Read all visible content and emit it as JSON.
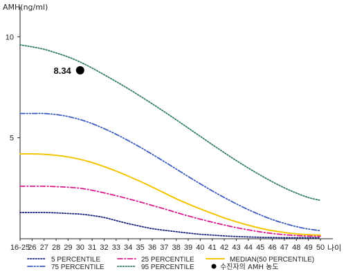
{
  "chart_data": {
    "type": "line",
    "ylabel": "AMH(ng/ml)",
    "xlabel": "나이",
    "categories": [
      "16-25",
      "26",
      "27",
      "28",
      "29",
      "30",
      "31",
      "32",
      "33",
      "34",
      "35",
      "36",
      "37",
      "38",
      "39",
      "40",
      "41",
      "42",
      "43",
      "44",
      "45",
      "46",
      "47",
      "48",
      "49",
      "50"
    ],
    "y_ticks": [
      5,
      10
    ],
    "ylim": [
      0,
      11
    ],
    "grid": false,
    "legend": "bottom",
    "series": [
      {
        "name": "5 PERCENTILE",
        "color": "#1a237e",
        "style": "dotted",
        "values": [
          1.3,
          1.3,
          1.3,
          1.28,
          1.25,
          1.22,
          1.15,
          1.05,
          0.9,
          0.75,
          0.62,
          0.5,
          0.42,
          0.35,
          0.28,
          0.22,
          0.18,
          0.14,
          0.11,
          0.09,
          0.07,
          0.06,
          0.05,
          0.05,
          0.05,
          0.05
        ]
      },
      {
        "name": "25 PERCENTILE",
        "color": "#d81b8c",
        "style": "dashdot",
        "values": [
          2.6,
          2.6,
          2.6,
          2.58,
          2.55,
          2.5,
          2.4,
          2.27,
          2.13,
          1.98,
          1.82,
          1.65,
          1.48,
          1.3,
          1.13,
          0.97,
          0.82,
          0.68,
          0.55,
          0.44,
          0.34,
          0.26,
          0.2,
          0.16,
          0.13,
          0.12
        ]
      },
      {
        "name": "MEDIAN(50 PERCENTILE)",
        "color": "#f2c500",
        "style": "solid",
        "values": [
          4.2,
          4.2,
          4.18,
          4.13,
          4.05,
          3.93,
          3.77,
          3.57,
          3.35,
          3.1,
          2.84,
          2.56,
          2.27,
          1.98,
          1.72,
          1.48,
          1.25,
          1.03,
          0.84,
          0.67,
          0.52,
          0.4,
          0.31,
          0.24,
          0.2,
          0.18
        ]
      },
      {
        "name": "75 PERCENTILE",
        "color": "#3a5bbd",
        "style": "dashdotdot",
        "values": [
          6.2,
          6.2,
          6.2,
          6.15,
          6.05,
          5.9,
          5.7,
          5.45,
          5.17,
          4.86,
          4.53,
          4.18,
          3.82,
          3.45,
          3.08,
          2.72,
          2.37,
          2.04,
          1.73,
          1.44,
          1.18,
          0.95,
          0.76,
          0.6,
          0.48,
          0.4
        ]
      },
      {
        "name": "95 PERCENTILE",
        "color": "#2e7d5b",
        "style": "dotted",
        "values": [
          9.6,
          9.5,
          9.38,
          9.2,
          9.0,
          8.75,
          8.45,
          8.12,
          7.78,
          7.43,
          7.06,
          6.68,
          6.29,
          5.89,
          5.48,
          5.07,
          4.66,
          4.26,
          3.87,
          3.5,
          3.15,
          2.82,
          2.52,
          2.26,
          2.04,
          1.9
        ]
      }
    ],
    "marker": {
      "x": "30",
      "y": 8.34,
      "label": "8.34",
      "color": "#000000"
    },
    "marker_legend": "수진자의 AMH 농도"
  }
}
